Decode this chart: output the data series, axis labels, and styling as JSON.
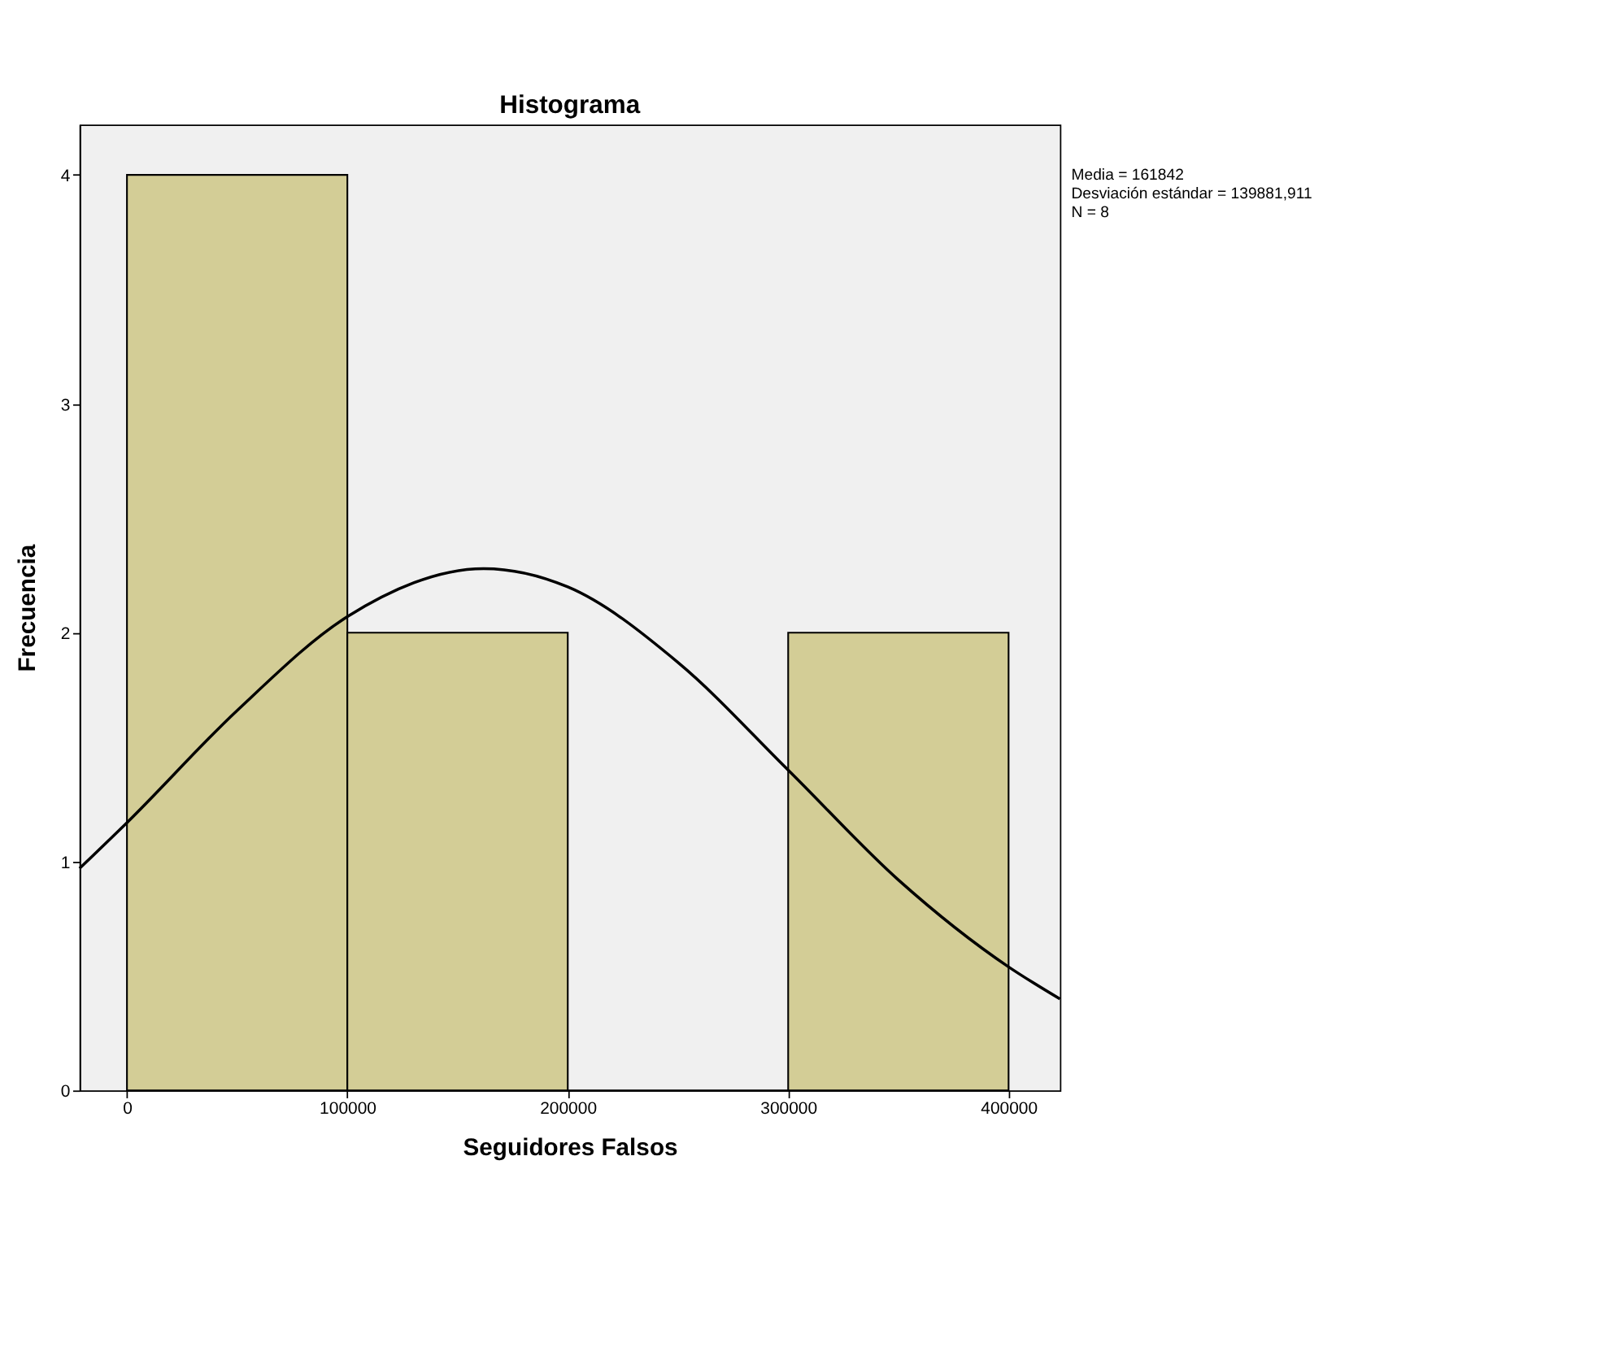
{
  "chart_data": {
    "type": "histogram",
    "title": "Histograma",
    "xlabel": "Seguidores Falsos",
    "ylabel": "Frecuencia",
    "bins": [
      0,
      100000,
      200000,
      300000,
      400000
    ],
    "values": [
      4,
      2,
      0,
      2
    ],
    "color": "#d3cd96",
    "series": [
      {
        "type": "line",
        "color": "#000000",
        "x": [
          -21500,
          0,
          50000,
          100000,
          161842,
          200000,
          250000,
          300000,
          350000,
          400000,
          423300
        ],
        "values": [
          0.97,
          1.17,
          1.66,
          2.07,
          2.28,
          2.2,
          1.87,
          1.4,
          0.92,
          0.54,
          0.4
        ]
      }
    ],
    "xlim": [
      -21500,
      423300
    ],
    "xticks": [
      0,
      100000,
      200000,
      300000,
      400000
    ],
    "ylim": [
      0,
      4.22
    ],
    "yticks": [
      0,
      1,
      2,
      3,
      4
    ],
    "grid": false,
    "annotations": [
      "Media = 161842",
      "Desviación estándar = 139881,911",
      "N = 8"
    ]
  }
}
